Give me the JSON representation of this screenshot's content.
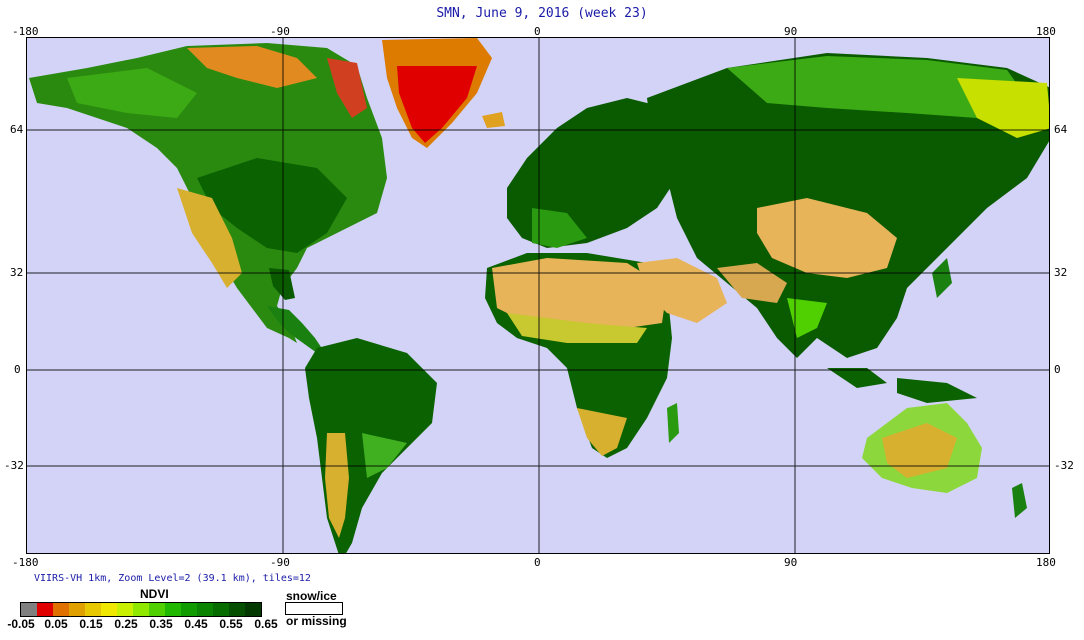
{
  "title": "SMN, June 9, 2016 (week 23)",
  "lon_ticks": [
    "-180",
    "-90",
    "0",
    "90",
    "180"
  ],
  "lat_ticks": [
    "64",
    "32",
    "0",
    "-32"
  ],
  "info_text": "VIIRS-VH 1km, Zoom Level=2 (39.1 km), tiles=12",
  "legend": {
    "title": "NDVI",
    "colors": [
      "#808080",
      "#e00000",
      "#e07000",
      "#e0a000",
      "#e8c800",
      "#f0e800",
      "#c8f000",
      "#90e800",
      "#50d000",
      "#20b800",
      "#109c00",
      "#0a8400",
      "#066c00",
      "#044f00",
      "#033800"
    ],
    "labels": [
      "-0.05",
      "0.05",
      "0.15",
      "0.25",
      "0.35",
      "0.45",
      "0.55",
      "0.65"
    ]
  },
  "snow_legend": {
    "line1": "snow/ice",
    "line2": "or missing"
  },
  "colors": {
    "ocean": "#d3d3f7",
    "grid": "#000000",
    "title_blue": "#1a1aa8"
  }
}
